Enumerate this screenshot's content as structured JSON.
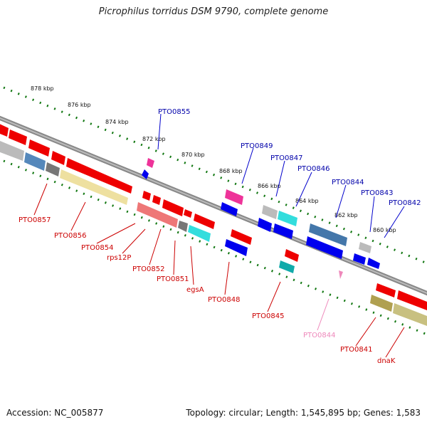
{
  "title": "Picrophilus torridus DSM 9790, complete genome",
  "footer": {
    "accession": "Accession: NC_005877",
    "topology": "Topology: circular; Length: 1,545,895 bp; Genes: 1,583"
  },
  "colors": {
    "plus_strand_gene": "#0000cc",
    "minus_strand_gene": "#cc0000",
    "pseudo_gene": "#ee88bb",
    "genome_line": "#777777",
    "tick": "#117711"
  },
  "scale_labels": [
    "878 kbp",
    "876 kbp",
    "874 kbp",
    "872 kbp",
    "870 kbp",
    "868 kbp",
    "866 kbp",
    "864 kbp",
    "862 kbp",
    "860 kbp"
  ],
  "genes_top": [
    "PTO0855",
    "PTO0849",
    "PTO0847",
    "PTO0846",
    "PTO0844",
    "PTO0843",
    "PTO0842"
  ],
  "genes_bottom": [
    "PTO0857",
    "PTO0856",
    "PTO0854",
    "rps12P",
    "PTO0852",
    "PTO0851",
    "egsA",
    "PTO0848",
    "PTO0845",
    "PTO0844",
    "PTO0841",
    "dnaK"
  ]
}
